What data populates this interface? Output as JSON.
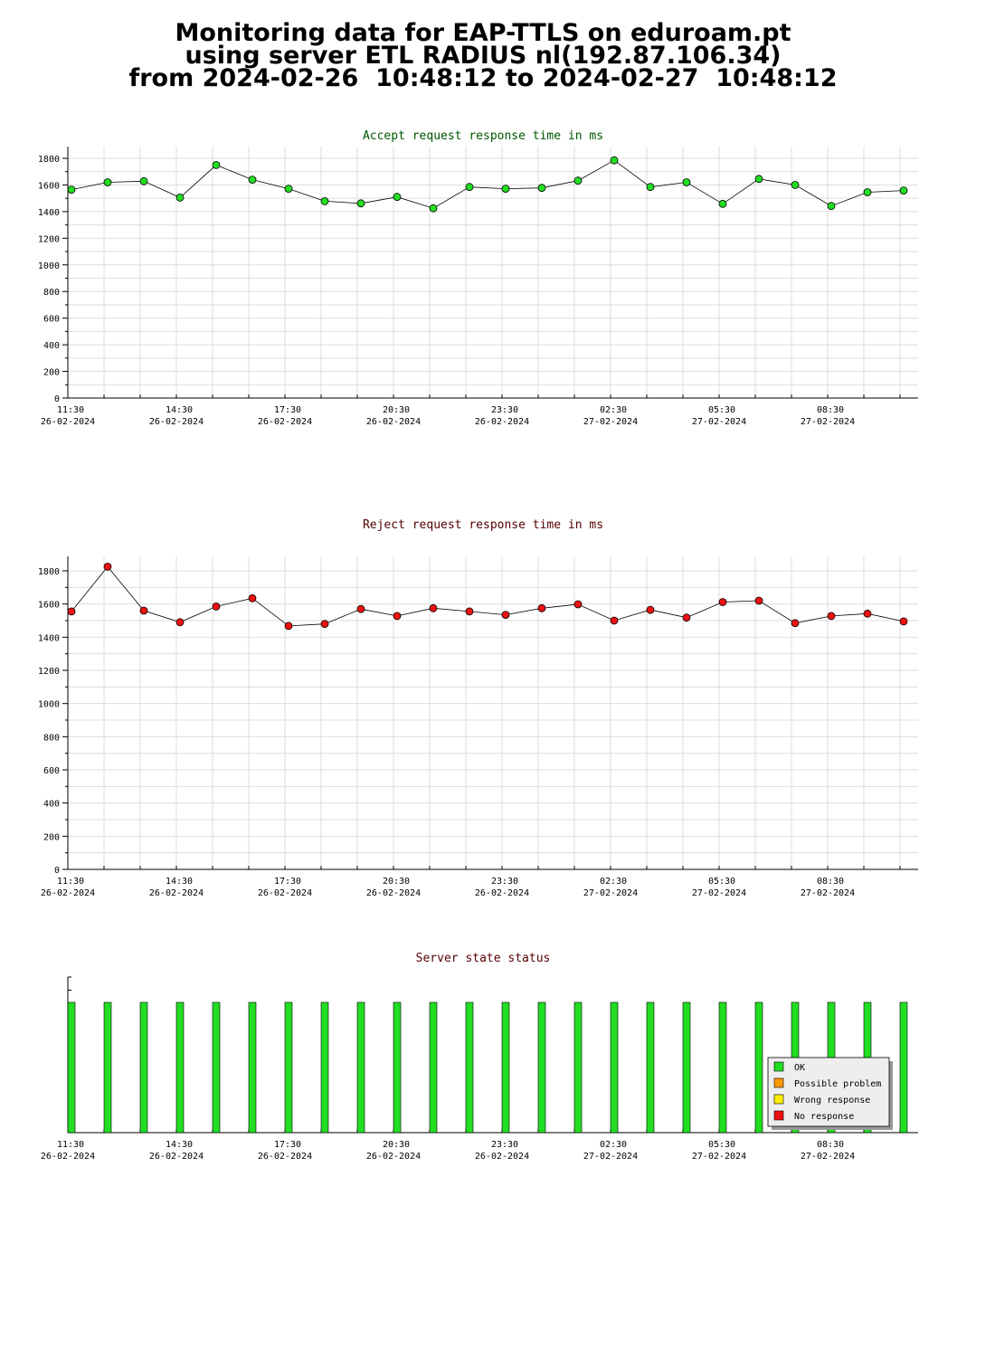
{
  "page": {
    "title_lines": [
      "Monitoring data for EAP-TTLS on eduroam.pt",
      "using server ETL RADIUS nl(192.87.106.34)",
      "from 2024-02-26  10:48:12 to 2024-02-27  10:48:12"
    ]
  },
  "colors": {
    "accept_title": "#005500",
    "reject_title": "#550000",
    "status_title": "#550000",
    "accept_marker": "#22dd22",
    "reject_marker": "#ee1111",
    "ok": "#22dd22",
    "possible_problem": "#ff9900",
    "wrong_response": "#ffee00",
    "no_response": "#ee1111"
  },
  "x_axis": {
    "tick_labels": [
      {
        "time": "11:30",
        "date": "26-02-2024"
      },
      {
        "time": "14:30",
        "date": "26-02-2024"
      },
      {
        "time": "17:30",
        "date": "26-02-2024"
      },
      {
        "time": "20:30",
        "date": "26-02-2024"
      },
      {
        "time": "23:30",
        "date": "26-02-2024"
      },
      {
        "time": "02:30",
        "date": "27-02-2024"
      },
      {
        "time": "05:30",
        "date": "27-02-2024"
      },
      {
        "time": "08:30",
        "date": "27-02-2024"
      }
    ]
  },
  "chart_data": [
    {
      "type": "line",
      "title": "Accept request response time in ms",
      "ylim": [
        0,
        1800
      ],
      "y_ticks": [
        0,
        200,
        400,
        600,
        800,
        1000,
        1200,
        1400,
        1600,
        1800
      ],
      "grid": true,
      "series": [
        {
          "values": [
            1565,
            1620,
            1628,
            1505,
            1750,
            1640,
            1572,
            1478,
            1462,
            1510,
            1425,
            1585,
            1572,
            1578,
            1632,
            1785,
            1585,
            1620,
            1458,
            1645,
            1600,
            1442,
            1545,
            1558
          ]
        }
      ]
    },
    {
      "type": "line",
      "title": "Reject request response time in ms",
      "ylim": [
        0,
        1800
      ],
      "y_ticks": [
        0,
        200,
        400,
        600,
        800,
        1000,
        1200,
        1400,
        1600,
        1800
      ],
      "grid": true,
      "series": [
        {
          "values": [
            1555,
            1825,
            1560,
            1490,
            1585,
            1635,
            1468,
            1480,
            1570,
            1528,
            1575,
            1555,
            1535,
            1575,
            1598,
            1500,
            1565,
            1518,
            1612,
            1620,
            1485,
            1528,
            1542,
            1495
          ]
        }
      ]
    },
    {
      "type": "bar",
      "title": "Server state status",
      "legend_position": "bottom-right",
      "legend": [
        "OK",
        "Possible problem",
        "Wrong response",
        "No response"
      ],
      "series": [
        {
          "name": "OK",
          "values": [
            1,
            1,
            1,
            1,
            1,
            1,
            1,
            1,
            1,
            1,
            1,
            1,
            1,
            1,
            1,
            1,
            1,
            1,
            1,
            1,
            1,
            1,
            1,
            1
          ]
        }
      ]
    }
  ]
}
